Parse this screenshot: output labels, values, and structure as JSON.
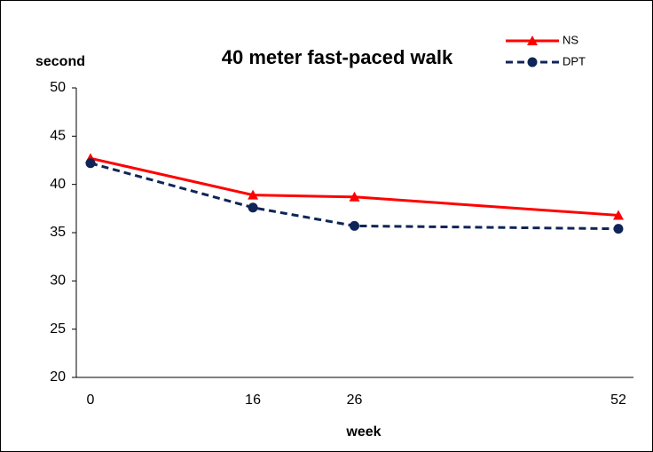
{
  "chart_data": {
    "type": "line",
    "title": "40 meter fast-paced walk",
    "x_label": "week",
    "y_label": "second",
    "x": [
      0,
      16,
      26,
      52
    ],
    "xlim": [
      0,
      52
    ],
    "xticks": [
      0,
      16,
      26,
      52
    ],
    "ylim": [
      20,
      50
    ],
    "yticks": [
      20,
      25,
      30,
      35,
      40,
      45,
      50
    ],
    "legend": "upper right",
    "series": [
      {
        "name": "NS",
        "color": "#ff0000",
        "marker": "triangle",
        "dash": "solid",
        "values": [
          42.7,
          38.9,
          38.7,
          36.8
        ]
      },
      {
        "name": "DPT",
        "color": "#0f2557",
        "marker": "circle",
        "dash": "dashed",
        "values": [
          42.2,
          37.6,
          35.7,
          35.4
        ]
      }
    ]
  }
}
